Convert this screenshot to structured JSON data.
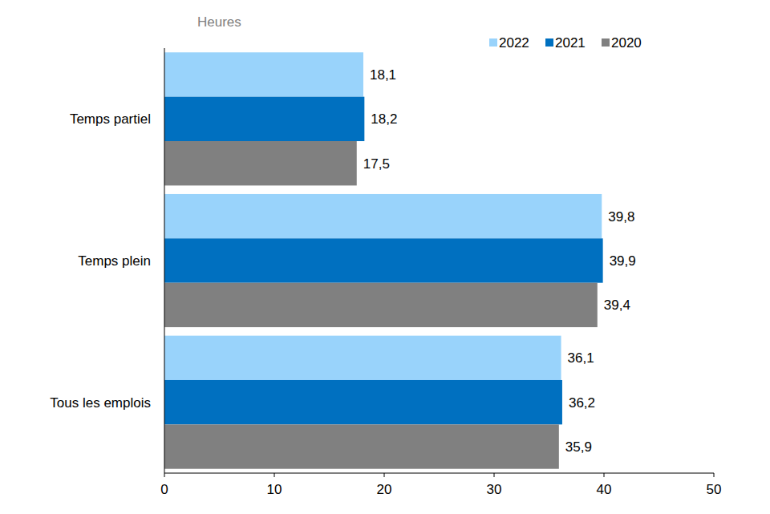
{
  "chart_data": {
    "type": "bar",
    "orientation": "horizontal",
    "xlabel": "Heures",
    "categories": [
      "Temps partiel",
      "Temps plein",
      "Tous les emplois"
    ],
    "series": [
      {
        "name": "2022",
        "color": "#99d3fb",
        "values": [
          18.1,
          39.8,
          36.1
        ],
        "value_labels": [
          "18,1",
          "39,8",
          "36,1"
        ]
      },
      {
        "name": "2021",
        "color": "#0070c0",
        "values": [
          18.2,
          39.9,
          36.2
        ],
        "value_labels": [
          "18,2",
          "39,9",
          "36,2"
        ]
      },
      {
        "name": "2020",
        "color": "#808080",
        "values": [
          17.5,
          39.4,
          35.9
        ],
        "value_labels": [
          "17,5",
          "39,4",
          "35,9"
        ]
      }
    ],
    "xlim": [
      0,
      50
    ],
    "xticks": [
      0,
      10,
      20,
      30,
      40,
      50
    ],
    "grid": false,
    "legend": "top-right",
    "data_labels": true
  }
}
